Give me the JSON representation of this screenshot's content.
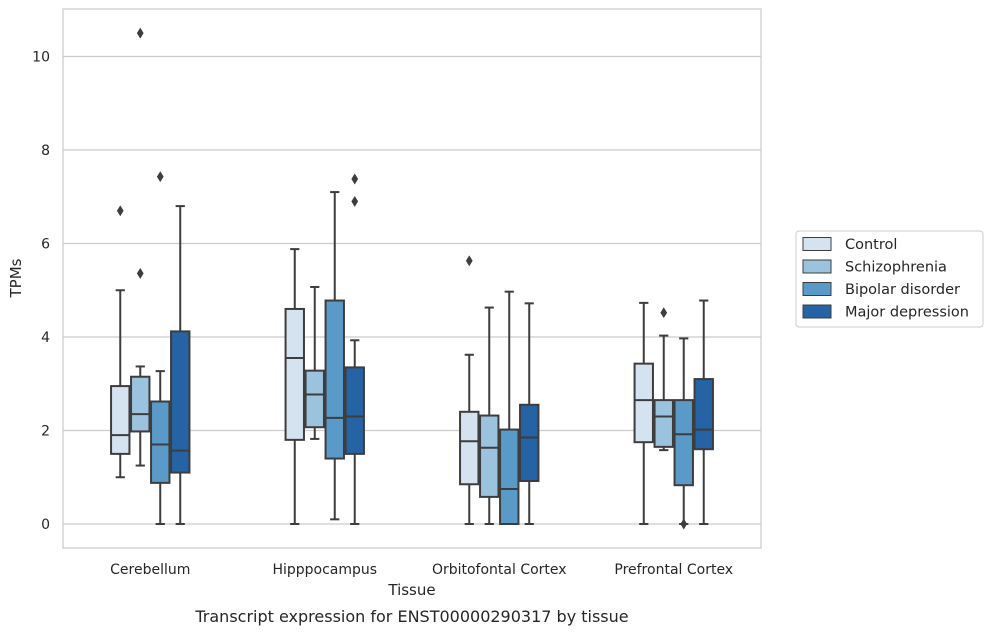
{
  "chart_data": {
    "type": "box",
    "title": "Transcript expression for ENST00000290317 by tissue",
    "xlabel": "Tissue",
    "ylabel": "TPMs",
    "ylim": [
      -0.5,
      11
    ],
    "yticks": [
      0,
      2,
      4,
      6,
      8,
      10
    ],
    "grid": "horizontal",
    "legend_position": "right",
    "categories": [
      "Cerebellum",
      "Hipppocampus",
      "Orbitofontal Cortex",
      "Prefrontal Cortex"
    ],
    "series": [
      {
        "name": "Control",
        "color": "#d5e3f1",
        "boxes": [
          {
            "whislo": 1.0,
            "q1": 1.5,
            "med": 1.9,
            "q3": 2.95,
            "whishi": 5.0,
            "fliers": [
              6.7
            ]
          },
          {
            "whislo": 0.0,
            "q1": 1.8,
            "med": 3.55,
            "q3": 4.6,
            "whishi": 5.88,
            "fliers": []
          },
          {
            "whislo": 0.0,
            "q1": 0.85,
            "med": 1.77,
            "q3": 2.4,
            "whishi": 3.62,
            "fliers": [
              5.63
            ]
          },
          {
            "whislo": 0.0,
            "q1": 1.75,
            "med": 2.65,
            "q3": 3.43,
            "whishi": 4.73,
            "fliers": []
          }
        ]
      },
      {
        "name": "Schizophrenia",
        "color": "#9bc3de",
        "boxes": [
          {
            "whislo": 1.25,
            "q1": 1.98,
            "med": 2.35,
            "q3": 3.15,
            "whishi": 3.37,
            "fliers": [
              5.36,
              10.5
            ]
          },
          {
            "whislo": 1.82,
            "q1": 2.07,
            "med": 2.77,
            "q3": 3.28,
            "whishi": 5.07,
            "fliers": []
          },
          {
            "whislo": 0.0,
            "q1": 0.58,
            "med": 1.63,
            "q3": 2.32,
            "whishi": 4.63,
            "fliers": []
          },
          {
            "whislo": 1.58,
            "q1": 1.65,
            "med": 2.3,
            "q3": 2.65,
            "whishi": 4.03,
            "fliers": [
              4.52
            ]
          }
        ]
      },
      {
        "name": "Bipolar disorder",
        "color": "#5a9ac9",
        "boxes": [
          {
            "whislo": 0.0,
            "q1": 0.88,
            "med": 1.7,
            "q3": 2.62,
            "whishi": 3.27,
            "fliers": [
              7.43
            ]
          },
          {
            "whislo": 0.1,
            "q1": 1.4,
            "med": 2.27,
            "q3": 4.78,
            "whishi": 7.1,
            "fliers": []
          },
          {
            "whislo": 0.0,
            "q1": 0.0,
            "med": 0.75,
            "q3": 2.02,
            "whishi": 4.97,
            "fliers": []
          },
          {
            "whislo": 0.0,
            "q1": 0.83,
            "med": 1.92,
            "q3": 2.65,
            "whishi": 3.97,
            "fliers": [
              0.0
            ]
          }
        ]
      },
      {
        "name": "Major depression",
        "color": "#2563a4",
        "boxes": [
          {
            "whislo": 0.0,
            "q1": 1.1,
            "med": 1.57,
            "q3": 4.12,
            "whishi": 6.8,
            "fliers": []
          },
          {
            "whislo": 0.0,
            "q1": 1.5,
            "med": 2.3,
            "q3": 3.35,
            "whishi": 3.93,
            "fliers": [
              6.9,
              7.38
            ]
          },
          {
            "whislo": 0.0,
            "q1": 0.92,
            "med": 1.85,
            "q3": 2.55,
            "whishi": 4.72,
            "fliers": []
          },
          {
            "whislo": 0.0,
            "q1": 1.6,
            "med": 2.02,
            "q3": 3.1,
            "whishi": 4.78,
            "fliers": []
          }
        ]
      }
    ]
  }
}
